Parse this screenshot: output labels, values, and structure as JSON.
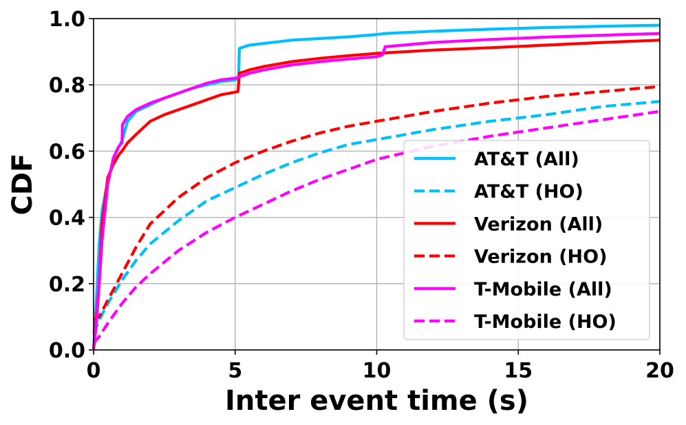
{
  "chart_data": {
    "type": "line",
    "title": "",
    "xlabel": "Inter event time (s)",
    "ylabel": "CDF",
    "xlim": [
      0,
      20
    ],
    "ylim": [
      0,
      1
    ],
    "xticks": [
      0,
      5,
      10,
      15,
      20
    ],
    "yticks": [
      0.0,
      0.2,
      0.4,
      0.6,
      0.8,
      1.0
    ],
    "xtick_labels": [
      "0",
      "5",
      "10",
      "15",
      "20"
    ],
    "ytick_labels": [
      "0.0",
      "0.2",
      "0.4",
      "0.6",
      "0.8",
      "1.0"
    ],
    "grid": true,
    "legend_position": "lower-right",
    "series": [
      {
        "name": "AT&T (All)",
        "color": "#00bfff",
        "style": "solid",
        "x": [
          0,
          0.1,
          0.2,
          0.3,
          0.5,
          0.8,
          1.0,
          1.2,
          1.5,
          2.0,
          2.5,
          3.0,
          3.5,
          4.0,
          4.5,
          5.0,
          5.12,
          5.15,
          5.5,
          6.0,
          7.0,
          8.0,
          9.0,
          10.0,
          10.3,
          12.0,
          14.0,
          16.0,
          18.0,
          20.0
        ],
        "y": [
          0,
          0.15,
          0.32,
          0.42,
          0.51,
          0.6,
          0.63,
          0.69,
          0.72,
          0.74,
          0.76,
          0.775,
          0.79,
          0.8,
          0.81,
          0.815,
          0.82,
          0.91,
          0.92,
          0.925,
          0.935,
          0.94,
          0.945,
          0.952,
          0.955,
          0.962,
          0.968,
          0.973,
          0.977,
          0.98
        ]
      },
      {
        "name": "AT&T (HO)",
        "color": "#00bfff",
        "style": "dashed",
        "x": [
          0,
          0.2,
          0.5,
          1.0,
          1.5,
          2.0,
          3.0,
          4.0,
          5.0,
          6.0,
          7.0,
          8.0,
          9.0,
          10.0,
          12.0,
          14.0,
          16.0,
          18.0,
          20.0
        ],
        "y": [
          0.05,
          0.09,
          0.14,
          0.21,
          0.27,
          0.32,
          0.39,
          0.45,
          0.49,
          0.53,
          0.565,
          0.595,
          0.62,
          0.635,
          0.665,
          0.69,
          0.71,
          0.735,
          0.75
        ]
      },
      {
        "name": "Verizon (All)",
        "color": "#ff0000",
        "style": "solid",
        "x": [
          0,
          0.1,
          0.2,
          0.3,
          0.5,
          0.7,
          0.9,
          1.0,
          1.2,
          1.5,
          2.0,
          2.5,
          3.0,
          3.5,
          4.0,
          4.5,
          5.0,
          5.1,
          5.15,
          5.5,
          6.0,
          7.0,
          8.0,
          9.0,
          10.0,
          12.0,
          14.0,
          16.0,
          18.0,
          20.0
        ],
        "y": [
          0,
          0.1,
          0.2,
          0.38,
          0.52,
          0.56,
          0.59,
          0.6,
          0.625,
          0.65,
          0.69,
          0.71,
          0.725,
          0.74,
          0.755,
          0.77,
          0.778,
          0.78,
          0.835,
          0.845,
          0.855,
          0.87,
          0.88,
          0.888,
          0.895,
          0.905,
          0.912,
          0.92,
          0.928,
          0.935
        ]
      },
      {
        "name": "Verizon (HO)",
        "color": "#ff0000",
        "style": "dashed",
        "x": [
          0,
          0.2,
          0.5,
          1.0,
          1.5,
          2.0,
          3.0,
          4.0,
          5.0,
          6.0,
          7.0,
          8.0,
          9.0,
          10.0,
          12.0,
          14.0,
          16.0,
          18.0,
          20.0
        ],
        "y": [
          0.09,
          0.1,
          0.15,
          0.23,
          0.31,
          0.38,
          0.46,
          0.52,
          0.565,
          0.6,
          0.63,
          0.655,
          0.675,
          0.69,
          0.72,
          0.745,
          0.765,
          0.78,
          0.795
        ]
      },
      {
        "name": "T-Mobile (All)",
        "color": "#ff00ff",
        "style": "solid",
        "x": [
          0,
          0.1,
          0.2,
          0.3,
          0.5,
          0.7,
          0.9,
          1.0,
          1.02,
          1.2,
          1.5,
          2.0,
          2.5,
          3.0,
          3.5,
          4.0,
          4.5,
          5.0,
          5.5,
          6.0,
          7.0,
          8.0,
          9.0,
          10.0,
          10.2,
          10.3,
          12.0,
          14.0,
          16.0,
          18.0,
          20.0
        ],
        "y": [
          0,
          0.08,
          0.2,
          0.33,
          0.5,
          0.58,
          0.615,
          0.625,
          0.68,
          0.705,
          0.725,
          0.745,
          0.76,
          0.775,
          0.79,
          0.805,
          0.815,
          0.82,
          0.835,
          0.845,
          0.86,
          0.87,
          0.878,
          0.885,
          0.89,
          0.915,
          0.928,
          0.937,
          0.944,
          0.95,
          0.955
        ]
      },
      {
        "name": "T-Mobile (HO)",
        "color": "#ff00ff",
        "style": "dashed",
        "x": [
          0,
          0.2,
          0.5,
          1.0,
          1.5,
          2.0,
          3.0,
          4.0,
          5.0,
          6.0,
          7.0,
          8.0,
          9.0,
          10.0,
          12.0,
          14.0,
          16.0,
          18.0,
          20.0
        ],
        "y": [
          0.02,
          0.04,
          0.08,
          0.14,
          0.19,
          0.23,
          0.3,
          0.355,
          0.4,
          0.44,
          0.48,
          0.515,
          0.545,
          0.575,
          0.615,
          0.645,
          0.67,
          0.695,
          0.72
        ]
      }
    ]
  }
}
